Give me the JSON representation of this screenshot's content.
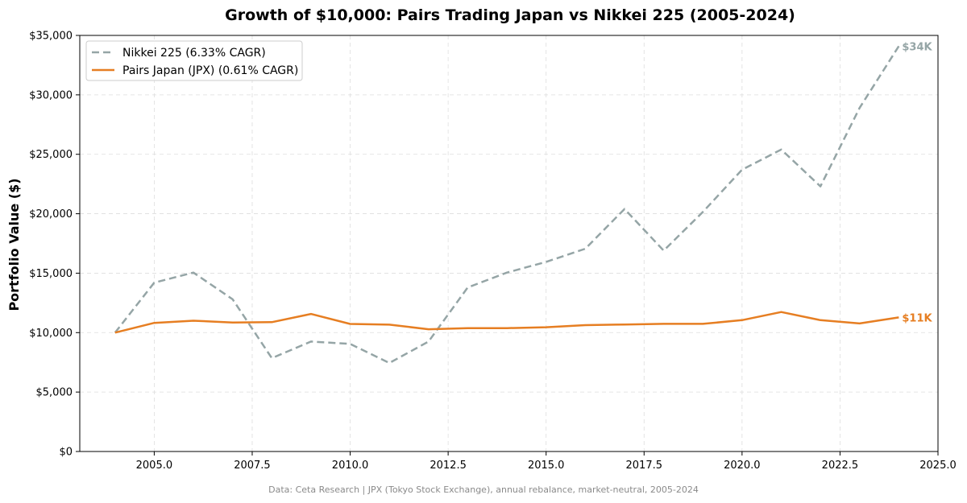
{
  "chart_data": {
    "type": "line",
    "title": "Growth of $10,000: Pairs Trading Japan vs Nikkei 225 (2005-2024)",
    "xlabel": "",
    "ylabel": "Portfolio Value ($)",
    "xlim": [
      2003.1,
      2025.0
    ],
    "ylim": [
      0,
      35000
    ],
    "grid": true,
    "legend_position": "top-left",
    "x_ticks": [
      2005.0,
      2007.5,
      2010.0,
      2012.5,
      2015.0,
      2017.5,
      2020.0,
      2022.5,
      2025.0
    ],
    "x_tick_labels": [
      "2005.0",
      "2007.5",
      "2010.0",
      "2012.5",
      "2015.0",
      "2017.5",
      "2020.0",
      "2022.5",
      "2025.0"
    ],
    "y_ticks": [
      0,
      5000,
      10000,
      15000,
      20000,
      25000,
      30000,
      35000
    ],
    "y_tick_labels": [
      "$0",
      "$5,000",
      "$10,000",
      "$15,000",
      "$20,000",
      "$25,000",
      "$30,000",
      "$35,000"
    ],
    "x": [
      2004,
      2005,
      2006,
      2007,
      2008,
      2009,
      2010,
      2011,
      2012,
      2013,
      2014,
      2015,
      2016,
      2017,
      2018,
      2019,
      2020,
      2021,
      2022,
      2023,
      2024
    ],
    "series": [
      {
        "name": "Nikkei 225 (6.33% CAGR)",
        "color": "#95a5a6",
        "style": "dashed",
        "end_label": "$34K",
        "values": [
          10000,
          14200,
          15050,
          12800,
          7850,
          9250,
          9050,
          7450,
          9250,
          13800,
          15050,
          15950,
          17050,
          20400,
          16900,
          20150,
          23700,
          25400,
          22300,
          28900,
          34100
        ]
      },
      {
        "name": "Pairs Japan (JPX) (0.61% CAGR)",
        "color": "#e67e22",
        "style": "solid",
        "end_label": "$11K",
        "values": [
          10000,
          10820,
          11000,
          10850,
          10880,
          11570,
          10730,
          10670,
          10280,
          10370,
          10380,
          10450,
          10630,
          10680,
          10740,
          10740,
          11050,
          11730,
          11050,
          10770,
          11280
        ]
      }
    ]
  },
  "source_note": "Data: Ceta Research | JPX (Tokyo Stock Exchange), annual rebalance, market-neutral, 2005-2024"
}
